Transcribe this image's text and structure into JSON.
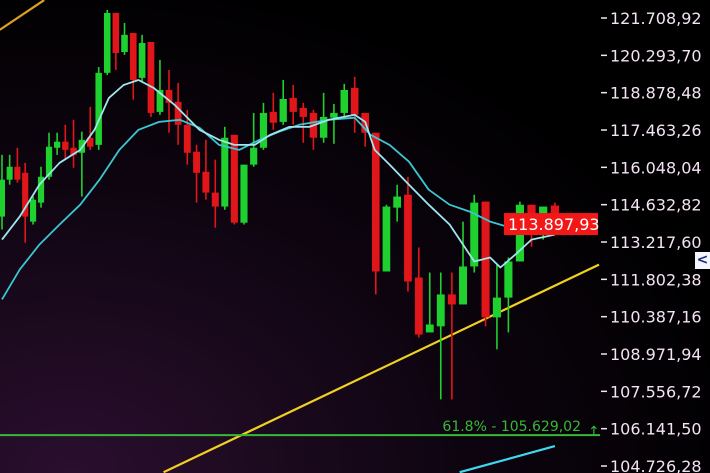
{
  "chart_data": {
    "type": "candlestick",
    "title": "",
    "xlabel": "",
    "ylabel": "",
    "ylim": [
      104726.28,
      121708.92
    ],
    "grid": false,
    "y_ticks": [
      "121.708,92",
      "120.293,70",
      "118.878,48",
      "117.463,26",
      "116.048,04",
      "114.632,82",
      "113.217,60",
      "111.802,38",
      "110.387,16",
      "108.971,94",
      "107.556,72",
      "106.141,50",
      "104.726,28"
    ],
    "y_tick_values": [
      121708.92,
      120293.7,
      118878.48,
      117463.26,
      116048.04,
      114632.82,
      113217.6,
      111802.38,
      110387.16,
      108971.94,
      107556.72,
      106141.5,
      104726.28
    ],
    "colors": {
      "up": "#1fd12f",
      "down": "#e0161a",
      "ma_fast": "#9fe6ee",
      "ma_slow": "#3cc6d2",
      "trendline": "#f0d020",
      "trendline_upper": "#e0a020",
      "trendline_lower": "#40d8ee",
      "fib": "#38b838",
      "price_tag": "#f21818"
    },
    "candles_ohlc": [
      [
        114180,
        116520,
        113690,
        115580
      ],
      [
        115580,
        116520,
        115390,
        116070
      ],
      [
        116070,
        116790,
        115470,
        115580
      ],
      [
        115840,
        116220,
        113190,
        114180
      ],
      [
        113990,
        114940,
        113880,
        114820
      ],
      [
        114710,
        116070,
        114520,
        115690
      ],
      [
        115690,
        117360,
        115580,
        116830
      ],
      [
        116790,
        117360,
        116520,
        117020
      ],
      [
        117020,
        117660,
        116340,
        116710
      ],
      [
        116790,
        117850,
        116030,
        116520
      ],
      [
        116600,
        117400,
        114940,
        117090
      ],
      [
        117170,
        118340,
        116710,
        116830
      ],
      [
        116900,
        119850,
        116710,
        119630
      ],
      [
        119630,
        122010,
        119550,
        121900
      ],
      [
        121900,
        121900,
        119740,
        120380
      ],
      [
        120420,
        121520,
        120310,
        121070
      ],
      [
        121140,
        121140,
        118610,
        119360
      ],
      [
        119440,
        121070,
        119290,
        120760
      ],
      [
        120800,
        120800,
        117960,
        118110
      ],
      [
        118150,
        120120,
        118040,
        118980
      ],
      [
        118980,
        119740,
        117360,
        118490
      ],
      [
        118530,
        119250,
        116900,
        117660
      ],
      [
        117660,
        118230,
        116150,
        116600
      ],
      [
        116640,
        116900,
        114710,
        115840
      ],
      [
        115880,
        117090,
        114820,
        115090
      ],
      [
        115090,
        116340,
        113760,
        114560
      ],
      [
        114560,
        117580,
        114440,
        117170
      ],
      [
        117280,
        117280,
        113880,
        113950
      ],
      [
        113950,
        116150,
        113880,
        116150
      ],
      [
        116150,
        118110,
        116070,
        116790
      ],
      [
        116790,
        118490,
        116710,
        118110
      ],
      [
        118150,
        118870,
        117470,
        117740
      ],
      [
        117770,
        119360,
        117660,
        118640
      ],
      [
        118680,
        119170,
        117660,
        118150
      ],
      [
        118300,
        118490,
        116980,
        117960
      ],
      [
        118110,
        118230,
        116710,
        117170
      ],
      [
        117170,
        118870,
        116980,
        117960
      ],
      [
        117930,
        118450,
        116940,
        118110
      ],
      [
        118110,
        119210,
        117960,
        118980
      ],
      [
        119060,
        119480,
        117360,
        118040
      ],
      [
        118110,
        118110,
        116830,
        117360
      ],
      [
        117360,
        117360,
        111230,
        112100
      ],
      [
        112100,
        114630,
        112100,
        114560
      ],
      [
        114520,
        115390,
        113990,
        114940
      ],
      [
        115010,
        115690,
        111340,
        111720
      ],
      [
        111870,
        113010,
        109600,
        109710
      ],
      [
        109790,
        112060,
        109790,
        110090
      ],
      [
        110020,
        112060,
        107250,
        111230
      ],
      [
        111230,
        112060,
        107250,
        110850
      ],
      [
        110850,
        113990,
        110850,
        112290
      ],
      [
        112290,
        115010,
        112060,
        114710
      ],
      [
        114750,
        114750,
        110020,
        110360
      ],
      [
        110360,
        112360,
        109150,
        111110
      ],
      [
        111110,
        112630,
        109790,
        112480
      ],
      [
        112480,
        114750,
        112480,
        114630
      ],
      [
        114630,
        114630,
        113040,
        113880
      ],
      [
        113800,
        114560,
        113310,
        114560
      ],
      [
        114600,
        114710,
        113500,
        113570
      ]
    ],
    "ma_fast": [
      [
        0,
        113310
      ],
      [
        2.3,
        114180
      ],
      [
        4.8,
        115390
      ],
      [
        7.3,
        116220
      ],
      [
        9.8,
        116710
      ],
      [
        11.5,
        117470
      ],
      [
        13.2,
        118680
      ],
      [
        14.9,
        119170
      ],
      [
        16.6,
        119360
      ],
      [
        18.3,
        119060
      ],
      [
        20.6,
        118420
      ],
      [
        23.3,
        117470
      ],
      [
        25.4,
        117090
      ],
      [
        27.0,
        116900
      ],
      [
        29.1,
        116900
      ],
      [
        30.7,
        117280
      ],
      [
        32.6,
        117580
      ],
      [
        34.6,
        117580
      ],
      [
        36.5,
        117850
      ],
      [
        39.0,
        118040
      ],
      [
        40.0,
        117770
      ],
      [
        40.9,
        116710
      ],
      [
        42.3,
        116150
      ],
      [
        44.1,
        115390
      ],
      [
        45.9,
        114630
      ],
      [
        47.8,
        113880
      ],
      [
        50.0,
        112480
      ],
      [
        51.4,
        112630
      ],
      [
        52.3,
        112250
      ],
      [
        53.6,
        112740
      ],
      [
        55.0,
        113310
      ],
      [
        57,
        113500
      ]
    ],
    "ma_slow": [
      [
        0,
        111040
      ],
      [
        2.3,
        112170
      ],
      [
        4.8,
        113120
      ],
      [
        7.3,
        113880
      ],
      [
        9.8,
        114630
      ],
      [
        12.1,
        115580
      ],
      [
        14.4,
        116710
      ],
      [
        16.6,
        117470
      ],
      [
        18.9,
        117770
      ],
      [
        21.2,
        117850
      ],
      [
        23.3,
        117550
      ],
      [
        25.4,
        116900
      ],
      [
        27.5,
        116710
      ],
      [
        29.6,
        117090
      ],
      [
        31.6,
        117400
      ],
      [
        33.6,
        117660
      ],
      [
        36.5,
        117850
      ],
      [
        39.0,
        117930
      ],
      [
        40.5,
        117280
      ],
      [
        42.3,
        116900
      ],
      [
        44.1,
        116260
      ],
      [
        45.9,
        115200
      ],
      [
        47.8,
        114630
      ],
      [
        49.6,
        114370
      ],
      [
        51.4,
        113990
      ],
      [
        53.2,
        113760
      ],
      [
        55.0,
        113910
      ],
      [
        57,
        113990
      ]
    ],
    "trendlines": [
      {
        "color_key": "trendline",
        "points": [
          [
            19.4,
            104490
          ],
          [
            60.7,
            112360
          ]
        ]
      },
      {
        "color_key": "trendline_upper",
        "points": [
          [
            -0.3,
            121260
          ],
          [
            5.4,
            122390
          ]
        ]
      },
      {
        "color_key": "trendline_lower",
        "points": [
          [
            48.7,
            104490
          ],
          [
            57,
            105480
          ]
        ]
      }
    ],
    "fib_level": {
      "label": "61.8% - 105.629,02",
      "value": 105629.02,
      "ratio": "61.8%"
    },
    "current_price": {
      "label": "113.897,93",
      "value": 113897.93
    }
  },
  "ui": {
    "collapse_button_label": "<",
    "fib_arrow": "↑"
  }
}
